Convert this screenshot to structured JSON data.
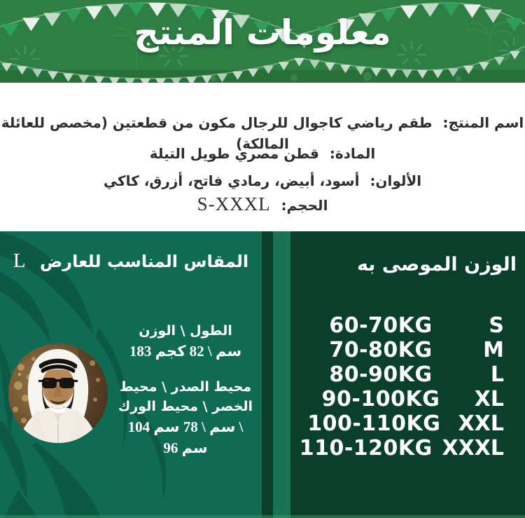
{
  "header": {
    "title": "معلومات المنتج"
  },
  "product": {
    "rows": [
      {
        "label": "اسم المنتج:",
        "value": "طقم رياضي كاجوال للرجال مكون من قطعتين (مخصص للعائلة المالكة)"
      },
      {
        "label": "المادة:",
        "value": "قطن مصري طويل التيلة"
      },
      {
        "label": "الألوان:",
        "value": "أسود، أبيض، رمادي فاتح، أزرق، كاكي"
      },
      {
        "label": "الحجم:",
        "value": "S-XXXL"
      }
    ]
  },
  "weight_panel": {
    "title": "الوزن الموصى به",
    "rows": [
      {
        "weight": "60-70KG",
        "size": "S"
      },
      {
        "weight": "70-80KG",
        "size": "M"
      },
      {
        "weight": "80-90KG",
        "size": "L"
      },
      {
        "weight": "90-100KG",
        "size": "XL"
      },
      {
        "weight": "100-110KG",
        "size": "XXL"
      },
      {
        "weight": "110-120KG",
        "size": "XXXL"
      }
    ]
  },
  "model_panel": {
    "title": "المقاس المناسب للعارض",
    "model_size": "L",
    "height_weight_label": "الطول \\ الوزن",
    "height_weight_value": "183 سم \\ 82 كجم",
    "circumference_label": "محيط الصدر \\ محيط\nالخصر \\ محيط الورك",
    "circumference_value": "104 سم \\ 78 سم \\\n96 سم"
  },
  "icons": {
    "model_photo": "circular-portrait-man-in-white-ghutra-sunglasses",
    "bunting": "triangle-pennant-flag-garland",
    "palm_leaf": "palm-frond-silhouette",
    "fireworks": "firework-burst"
  },
  "colors": {
    "banner_green": "#2E7F43",
    "left_panel_green": "#0F6B53",
    "right_panel_green": "#0A402B",
    "divider_stripe": "#1B7355",
    "text_dark": "#2D2D2D",
    "white": "#FFFFFF"
  }
}
